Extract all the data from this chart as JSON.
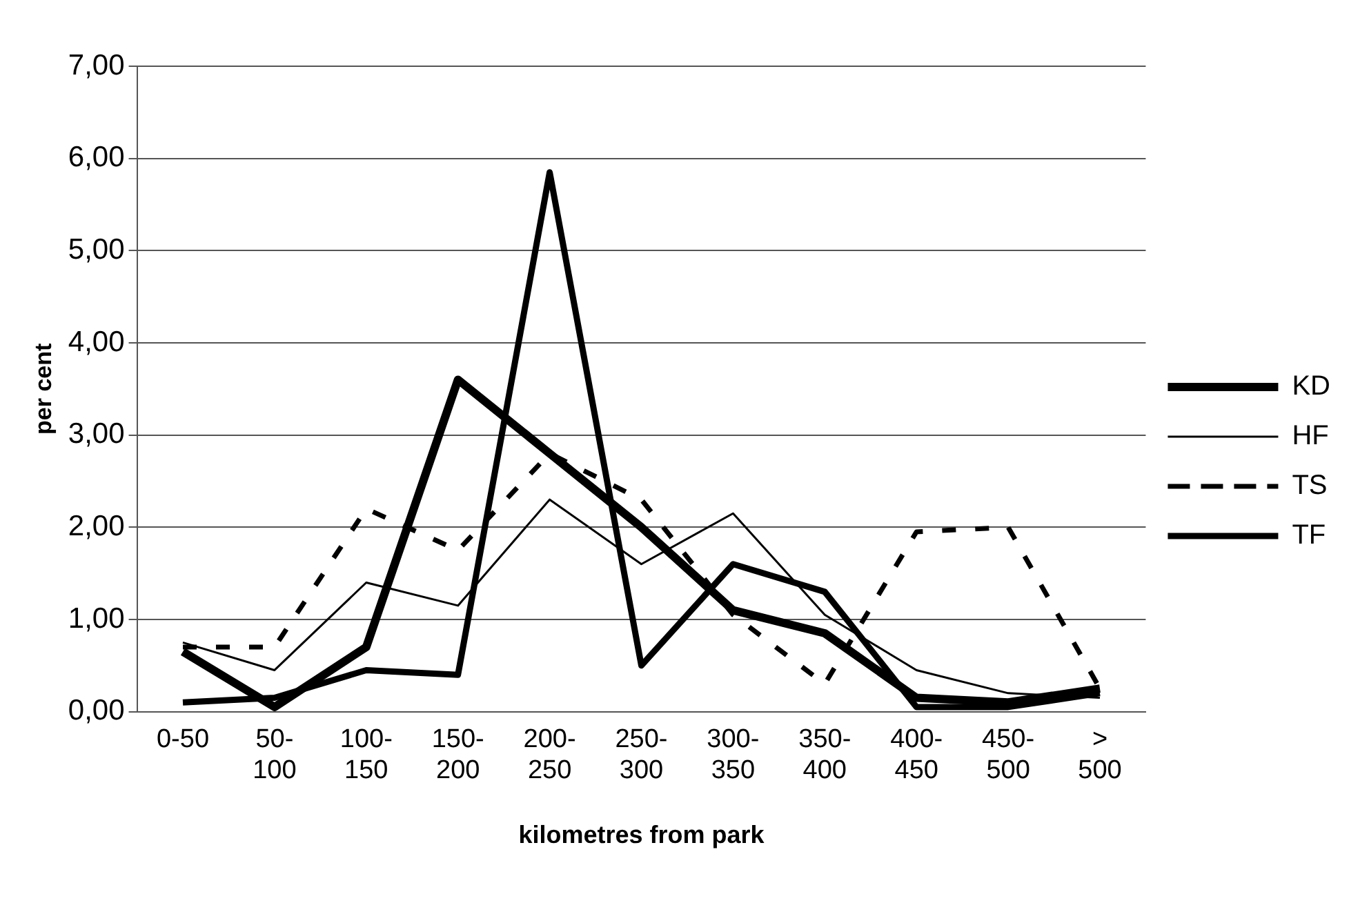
{
  "chart_data": {
    "type": "line",
    "xlabel": "kilometres from park",
    "ylabel": "per cent",
    "categories": [
      "0-50",
      "50-100",
      "100-150",
      "150-200",
      "200-250",
      "250-300",
      "300-350",
      "350-400",
      "400-450",
      "450-500",
      "> 500"
    ],
    "series": [
      {
        "name": "KD",
        "color": "#000000",
        "line_style": "solid",
        "values": [
          0.65,
          0.05,
          0.7,
          3.6,
          2.8,
          2.0,
          1.1,
          0.85,
          0.15,
          0.1,
          0.25
        ]
      },
      {
        "name": "HF",
        "color": "#000000",
        "line_style": "solid",
        "values": [
          0.75,
          0.45,
          1.4,
          1.15,
          2.3,
          1.6,
          2.15,
          1.05,
          0.45,
          0.2,
          0.15
        ]
      },
      {
        "name": "TS",
        "color": "#000000",
        "line_style": "dashed",
        "values": [
          0.7,
          0.7,
          2.2,
          1.75,
          2.8,
          2.3,
          1.05,
          0.3,
          1.95,
          2.0,
          0.25
        ]
      },
      {
        "name": "TF",
        "color": "#000000",
        "line_style": "solid",
        "values": [
          0.1,
          0.15,
          0.45,
          0.4,
          5.85,
          0.5,
          1.6,
          1.3,
          0.05,
          0.05,
          0.2
        ]
      }
    ],
    "ylim": [
      0,
      7
    ],
    "yticks": [
      {
        "value": 0,
        "label": "0,00"
      },
      {
        "value": 1,
        "label": "1,00"
      },
      {
        "value": 2,
        "label": "2,00"
      },
      {
        "value": 3,
        "label": "3,00"
      },
      {
        "value": 4,
        "label": "4,00"
      },
      {
        "value": 5,
        "label": "5,00"
      },
      {
        "value": 6,
        "label": "6,00"
      },
      {
        "value": 7,
        "label": "7,00"
      }
    ],
    "grid": "y",
    "legend": "right",
    "marker": "none"
  }
}
